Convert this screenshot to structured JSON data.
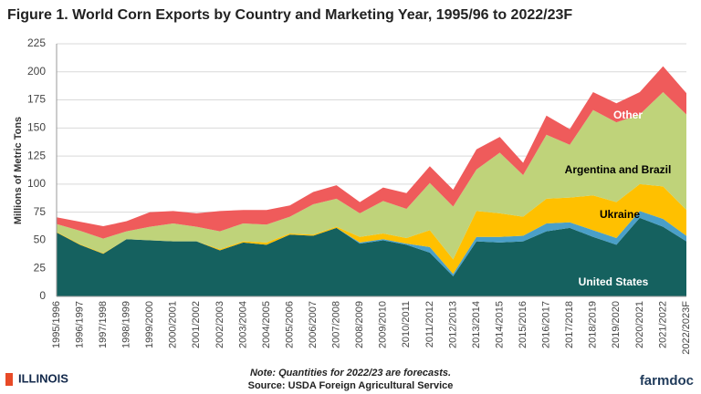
{
  "chart_data": {
    "type": "stacked_area",
    "title": "Figure 1. World Corn Exports by Country and Marketing Year, 1995/96 to 2022/23F",
    "y_label": "Millions of Metric Tons",
    "categories": [
      "1995/1996",
      "1996/1997",
      "1997/1998",
      "1998/1999",
      "1999/2000",
      "2000/2001",
      "2001/2002",
      "2002/2003",
      "2003/2004",
      "2004/2005",
      "2005/2006",
      "2006/2007",
      "2007/2008",
      "2008/2009",
      "2009/2010",
      "2010/2011",
      "2011/2012",
      "2012/2013",
      "2013/2014",
      "2014/2015",
      "2015/2016",
      "2016/2017",
      "2017/2018",
      "2018/2019",
      "2019/2020",
      "2020/2021",
      "2021/2022",
      "2022/2023F"
    ],
    "series": [
      {
        "name": "United States",
        "color": "#15615f",
        "label_color": "#ffffff",
        "values": [
          57,
          46,
          38,
          51,
          50,
          49,
          49,
          41,
          48,
          46,
          55,
          54,
          61,
          47,
          50,
          46,
          39,
          18,
          49,
          48,
          49,
          58,
          61,
          53,
          46,
          70,
          62,
          49
        ]
      },
      {
        "color": "#4a9fc8",
        "values": [
          0,
          0,
          0,
          0,
          0,
          0,
          0,
          0,
          0,
          0,
          0,
          0,
          0,
          1,
          1,
          1,
          5,
          2,
          4,
          5,
          5,
          7,
          5,
          6,
          6,
          6,
          7,
          5
        ]
      },
      {
        "name": "Ukraine",
        "color": "#ffc000",
        "label_color": "#000000",
        "values": [
          0.5,
          0.5,
          0.5,
          0,
          0,
          0,
          0,
          1,
          1,
          2,
          1,
          1,
          1,
          5,
          5,
          5,
          15,
          13,
          23,
          21,
          17,
          22,
          22,
          31,
          32,
          24,
          29,
          23
        ]
      },
      {
        "name": "Argentina and Brazil",
        "color": "#bfd37a",
        "label_color": "#000000",
        "values": [
          7,
          12,
          13,
          7,
          12,
          16,
          13,
          16,
          16,
          16,
          15,
          27,
          25,
          21,
          29,
          26,
          42,
          47,
          37,
          54,
          37,
          57,
          47,
          76,
          71,
          62,
          84,
          85
        ]
      },
      {
        "name": "Other",
        "color": "#ef5b5b",
        "label_color": "#ffffff",
        "values": [
          6,
          8,
          11,
          9,
          13,
          11,
          12,
          18,
          12,
          13,
          10,
          11,
          12,
          10,
          12,
          14,
          15,
          15,
          18,
          14,
          11,
          17,
          14,
          16,
          17,
          20,
          23,
          19
        ]
      }
    ],
    "ylim": [
      0,
      225
    ],
    "yticks": [
      0,
      25,
      50,
      75,
      100,
      125,
      150,
      175,
      200,
      225
    ],
    "grid": true,
    "note": "Note: Quantities for 2022/23 are forecasts.",
    "source": "Source: USDA Foreign Agricultural Service",
    "brand_left": "ILLINOIS",
    "brand_right": "farmdoc"
  }
}
